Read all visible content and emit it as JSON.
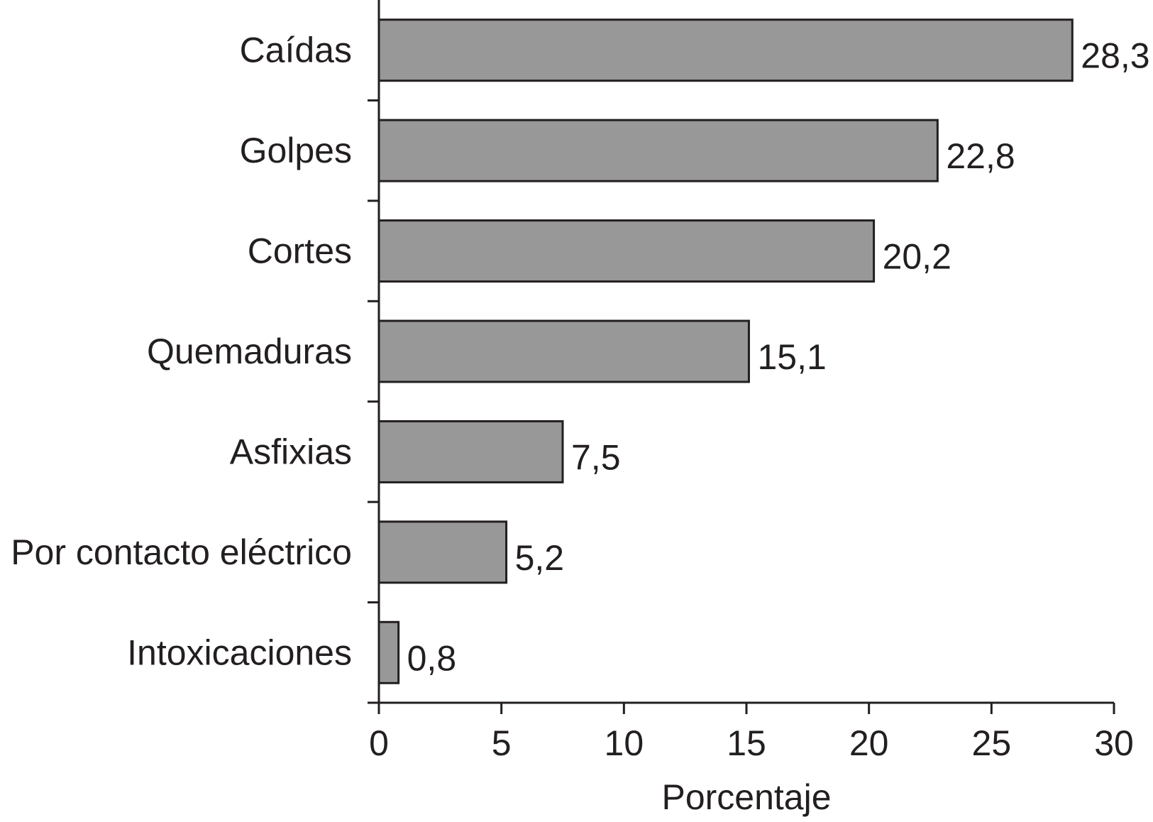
{
  "chart_data": {
    "type": "bar",
    "orientation": "horizontal",
    "categories": [
      "Caídas",
      "Golpes",
      "Cortes",
      "Quemaduras",
      "Asfixias",
      "Por contacto eléctrico",
      "Intoxicaciones"
    ],
    "values": [
      28.3,
      22.8,
      20.2,
      15.1,
      7.5,
      5.2,
      0.8
    ],
    "value_labels": [
      "28,3",
      "22,8",
      "20,2",
      "15,1",
      "7,5",
      "5,2",
      "0,8"
    ],
    "title": "",
    "xlabel": "Porcentaje",
    "ylabel": "",
    "xlim": [
      0,
      30
    ],
    "xticks": [
      0,
      5,
      10,
      15,
      20,
      25,
      30
    ],
    "xtick_labels": [
      "0",
      "5",
      "10",
      "15",
      "20",
      "25",
      "30"
    ],
    "grid": false,
    "bar_color": "#989898",
    "outline_color": "#231f20"
  }
}
